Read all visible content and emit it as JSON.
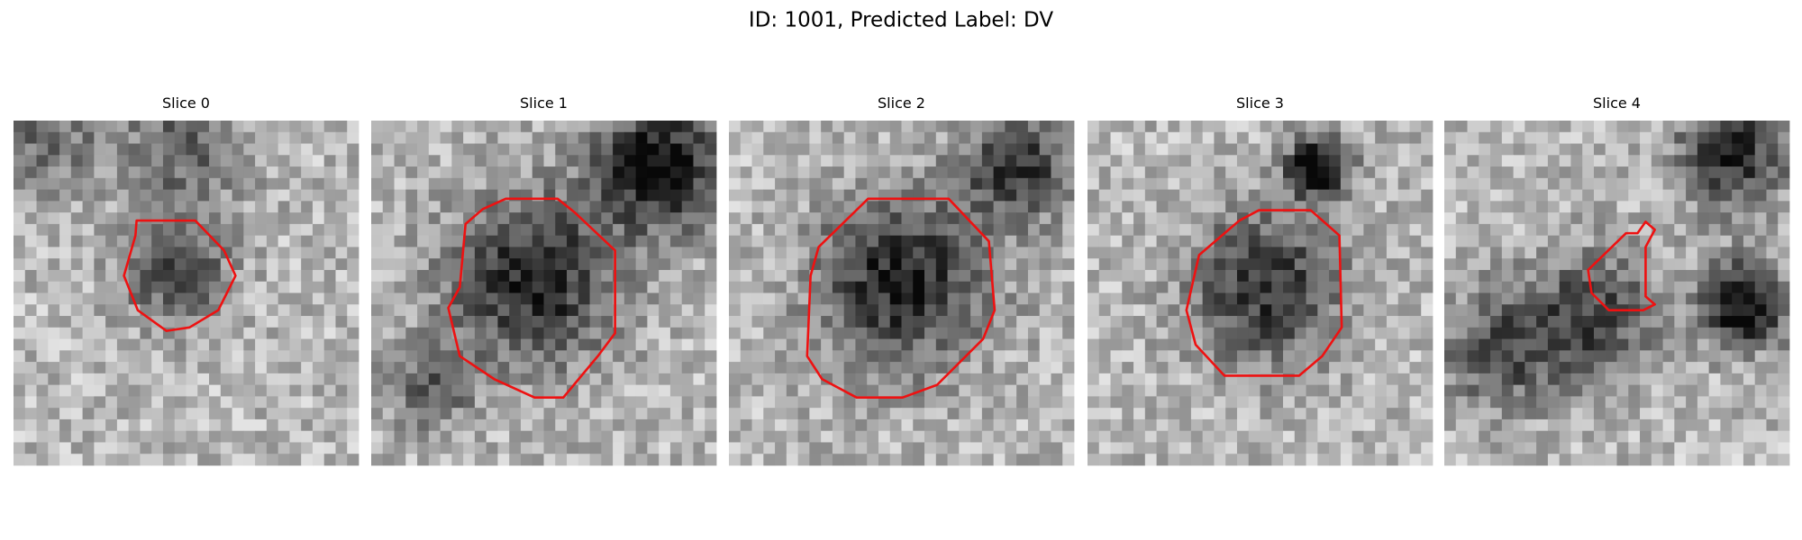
{
  "title": "ID: 1001, Predicted Label: DV",
  "panels": [
    {
      "title": "Slice 0"
    },
    {
      "title": "Slice 1"
    },
    {
      "title": "Slice 2"
    },
    {
      "title": "Slice 3"
    },
    {
      "title": "Slice 4"
    }
  ]
}
